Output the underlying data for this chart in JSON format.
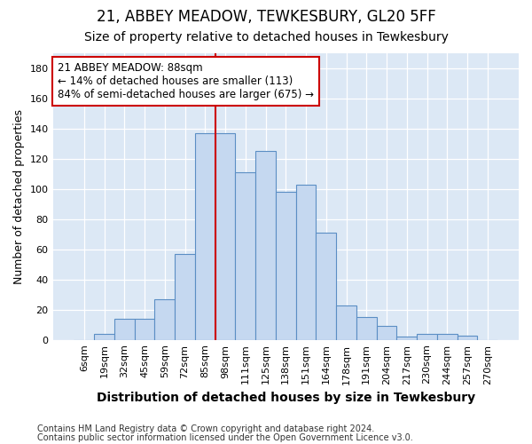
{
  "title1": "21, ABBEY MEADOW, TEWKESBURY, GL20 5FF",
  "title2": "Size of property relative to detached houses in Tewkesbury",
  "xlabel": "Distribution of detached houses by size in Tewkesbury",
  "ylabel": "Number of detached properties",
  "footnote1": "Contains HM Land Registry data © Crown copyright and database right 2024.",
  "footnote2": "Contains public sector information licensed under the Open Government Licence v3.0.",
  "categories": [
    "6sqm",
    "19sqm",
    "32sqm",
    "45sqm",
    "59sqm",
    "72sqm",
    "85sqm",
    "98sqm",
    "111sqm",
    "125sqm",
    "138sqm",
    "151sqm",
    "164sqm",
    "178sqm",
    "191sqm",
    "204sqm",
    "217sqm",
    "230sqm",
    "244sqm",
    "257sqm",
    "270sqm"
  ],
  "values": [
    0,
    4,
    14,
    14,
    27,
    57,
    137,
    137,
    111,
    125,
    98,
    103,
    71,
    23,
    15,
    9,
    2,
    4,
    4,
    3,
    0
  ],
  "bar_color": "#c5d8f0",
  "bar_edge_color": "#5b8ec4",
  "vline_color": "#cc0000",
  "vline_x_index": 6.5,
  "ylim": [
    0,
    190
  ],
  "yticks": [
    0,
    20,
    40,
    60,
    80,
    100,
    120,
    140,
    160,
    180
  ],
  "annotation_title": "21 ABBEY MEADOW: 88sqm",
  "annotation_line1": "← 14% of detached houses are smaller (113)",
  "annotation_line2": "84% of semi-detached houses are larger (675) →",
  "annotation_box_color": "#cc0000",
  "plot_bg_color": "#dce8f5",
  "fig_bg_color": "#ffffff",
  "grid_color": "#ffffff",
  "title_fontsize": 12,
  "subtitle_fontsize": 10,
  "xlabel_fontsize": 10,
  "ylabel_fontsize": 9,
  "tick_fontsize": 8,
  "footnote_fontsize": 7
}
